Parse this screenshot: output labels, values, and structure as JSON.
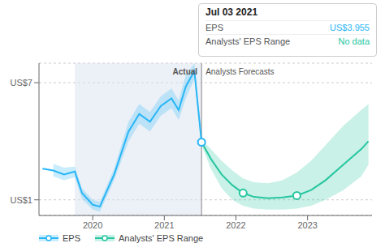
{
  "chart_data": {
    "type": "line",
    "xlim": [
      2019.25,
      2023.9
    ],
    "xticks": [
      2020,
      2021,
      2022,
      2023
    ],
    "ylim": [
      0.2,
      8.0
    ],
    "yticks": [
      {
        "value": 1,
        "label": "US$1"
      },
      {
        "value": 7,
        "label": "US$7"
      }
    ],
    "grid": true,
    "legend": "bottom",
    "series": [
      {
        "name": "EPS",
        "color": "#29b6f6",
        "x": [
          2019.3,
          2019.45,
          2019.6,
          2019.75,
          2019.85,
          2020.0,
          2020.1,
          2020.3,
          2020.5,
          2020.65,
          2020.8,
          2020.95,
          2021.1,
          2021.2,
          2021.3,
          2021.42,
          2021.52
        ],
        "values": [
          2.6,
          2.5,
          2.3,
          2.45,
          1.35,
          0.75,
          0.65,
          2.3,
          4.5,
          5.4,
          5.0,
          5.8,
          6.2,
          5.6,
          6.8,
          7.6,
          3.955
        ],
        "range_x": [
          2019.45,
          2019.6,
          2019.75,
          2019.85,
          2020.0,
          2020.1,
          2020.3,
          2020.5,
          2020.65,
          2020.8,
          2020.95,
          2021.1,
          2021.2,
          2021.3,
          2021.42,
          2021.52
        ],
        "range_lower": [
          2.2,
          2.0,
          2.15,
          1.05,
          0.5,
          0.4,
          2.0,
          4.0,
          4.9,
          4.5,
          5.3,
          5.7,
          5.1,
          6.2,
          7.2,
          3.7
        ],
        "range_upper": [
          2.85,
          2.65,
          2.7,
          1.6,
          1.0,
          0.9,
          2.6,
          5.0,
          5.9,
          5.5,
          6.3,
          6.7,
          6.1,
          7.4,
          8.0,
          4.2
        ],
        "points_x": [
          2021.52
        ],
        "points_y": [
          3.955
        ]
      },
      {
        "name": "Analysts' EPS Range",
        "color": "#26c6a0",
        "x": [
          2021.52,
          2021.65,
          2021.8,
          2021.95,
          2022.1,
          2022.25,
          2022.45,
          2022.65,
          2022.85,
          2023.05,
          2023.25,
          2023.5,
          2023.75,
          2023.85
        ],
        "values": [
          3.955,
          3.1,
          2.3,
          1.75,
          1.35,
          1.15,
          1.08,
          1.12,
          1.22,
          1.5,
          2.0,
          2.8,
          3.6,
          4.0
        ],
        "range_lower": [
          3.8,
          2.6,
          1.6,
          1.0,
          0.7,
          0.55,
          0.5,
          0.5,
          0.55,
          0.7,
          1.0,
          1.5,
          2.2,
          2.8
        ],
        "range_upper": [
          4.1,
          3.6,
          3.0,
          2.5,
          2.1,
          1.9,
          1.85,
          2.0,
          2.4,
          3.0,
          3.8,
          4.8,
          5.6,
          5.9
        ],
        "points_x": [
          2022.1,
          2022.85
        ],
        "points_y": [
          1.35,
          1.22
        ]
      }
    ],
    "highlight_range": [
      2019.75,
      2021.52
    ],
    "divider_x": 2021.52,
    "annotations": [
      {
        "text": "Actual",
        "x": 2021.52,
        "y": 7.55
      },
      {
        "text": "Analysts Forecasts",
        "x": 2021.52,
        "y": 7.55
      }
    ],
    "tooltip": {
      "title": "Jul 03 2021",
      "rows": [
        {
          "label": "EPS",
          "value": "US$3.955"
        },
        {
          "label": "Analysts' EPS Range",
          "value": "No data"
        }
      ]
    }
  }
}
